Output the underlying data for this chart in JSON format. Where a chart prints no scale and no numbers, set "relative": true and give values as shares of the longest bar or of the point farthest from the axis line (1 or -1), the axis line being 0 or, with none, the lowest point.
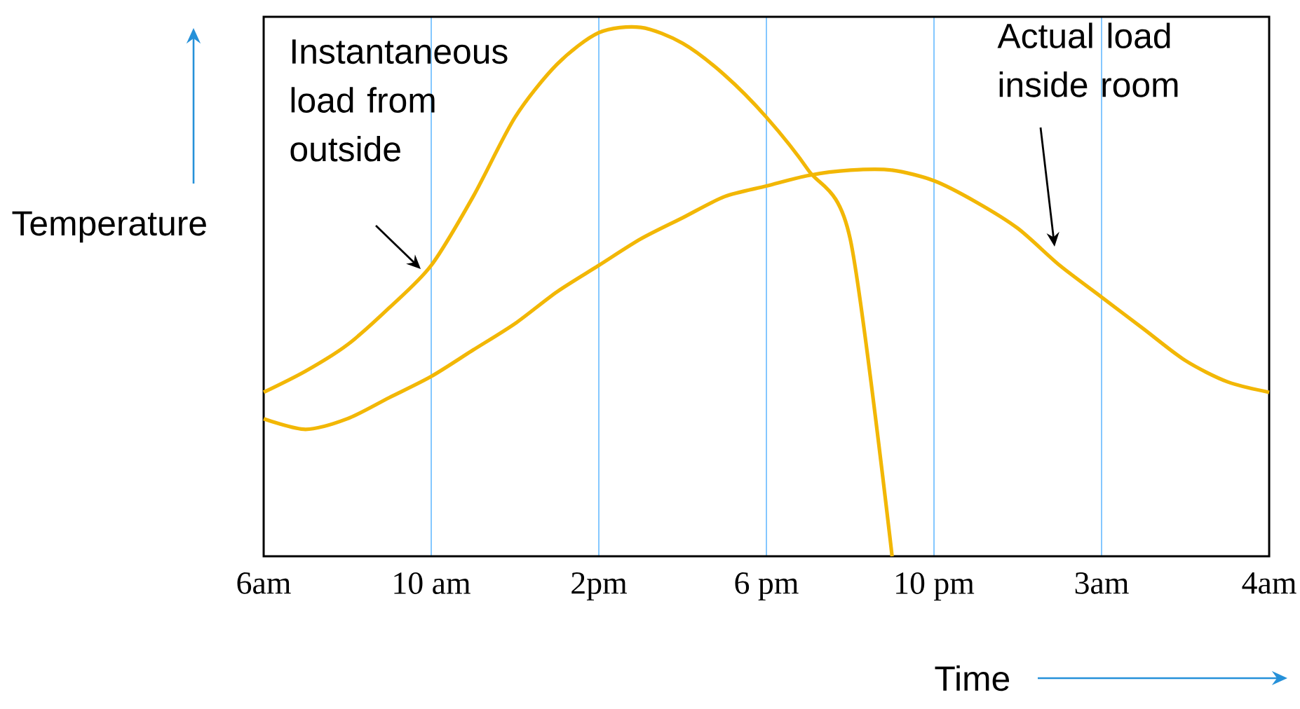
{
  "chart_data": {
    "type": "line",
    "xlabel": "Time",
    "ylabel": "Temperature",
    "relative": true,
    "grid": "x",
    "tick_labels": "x",
    "categories": [
      "6am",
      null,
      null,
      null,
      "10 am",
      null,
      null,
      null,
      "2pm",
      null,
      null,
      null,
      "6 pm",
      null,
      null,
      null,
      "10 pm",
      null,
      null,
      null,
      "3am",
      null,
      null,
      null,
      "4am"
    ],
    "series": [
      {
        "name": "Instantaneous load from outside",
        "color": "#f2b705",
        "values": [
          0.31,
          0.35,
          0.4,
          0.47,
          0.55,
          0.68,
          0.83,
          0.93,
          0.99,
          1.0,
          0.97,
          0.91,
          0.83,
          0.73,
          0.6,
          0.0,
          null,
          null,
          null,
          null,
          null,
          null,
          null,
          null,
          null
        ]
      },
      {
        "name": "Actual load inside room",
        "color": "#f2b705",
        "values": [
          0.26,
          0.24,
          0.26,
          0.3,
          0.34,
          0.39,
          0.44,
          0.5,
          0.55,
          0.6,
          0.64,
          0.68,
          0.7,
          0.72,
          0.73,
          0.73,
          0.71,
          0.67,
          0.62,
          0.55,
          0.49,
          0.43,
          0.37,
          0.33,
          0.31
        ]
      }
    ]
  }
}
